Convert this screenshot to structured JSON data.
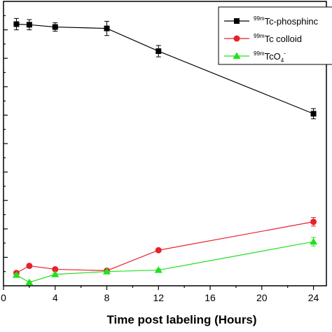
{
  "chart_data": {
    "type": "line",
    "title": "",
    "xlabel": "Time post labeling (Hours)",
    "ylabel": "",
    "xlim": [
      0,
      25
    ],
    "ylim": [
      0,
      100
    ],
    "x_ticks": [
      0,
      4,
      8,
      12,
      16,
      20,
      24
    ],
    "x_tick_labels": [
      "0",
      "4",
      "8",
      "12",
      "16",
      "20",
      "24"
    ],
    "legend_position": "top-right",
    "series": [
      {
        "name": "99mTc-phosphinc",
        "legend": {
          "sup": "99m",
          "base": "Tc-phosphinc",
          "sub": "",
          "tail": ""
        },
        "color": "#000000",
        "marker": "square",
        "x": [
          1,
          2,
          4,
          8,
          12,
          24
        ],
        "y": [
          92.0,
          91.8,
          91.0,
          90.5,
          82.5,
          60.5
        ],
        "err": [
          2.0,
          1.8,
          1.5,
          2.5,
          2.0,
          1.8
        ]
      },
      {
        "name": "99mTc colloid",
        "legend": {
          "sup": "99m",
          "base": "Tc colloid",
          "sub": "",
          "tail": ""
        },
        "color": "#e8212b",
        "marker": "circle",
        "x": [
          1,
          2,
          4,
          8,
          12,
          24
        ],
        "y": [
          4.5,
          7.0,
          5.8,
          5.3,
          12.5,
          22.5
        ],
        "err": [
          0.6,
          0.5,
          0.5,
          0.5,
          0.5,
          1.5
        ]
      },
      {
        "name": "99mTcO4-",
        "legend": {
          "sup": "99m",
          "base": "TcO",
          "sub": "4",
          "tail": "-"
        },
        "color": "#22e01e",
        "marker": "triangle",
        "x": [
          1,
          2,
          4,
          8,
          12,
          24
        ],
        "y": [
          3.8,
          1.2,
          4.0,
          5.0,
          5.5,
          15.5
        ],
        "err": [
          0.5,
          0.4,
          0.4,
          0.4,
          0.4,
          1.5
        ]
      }
    ]
  }
}
